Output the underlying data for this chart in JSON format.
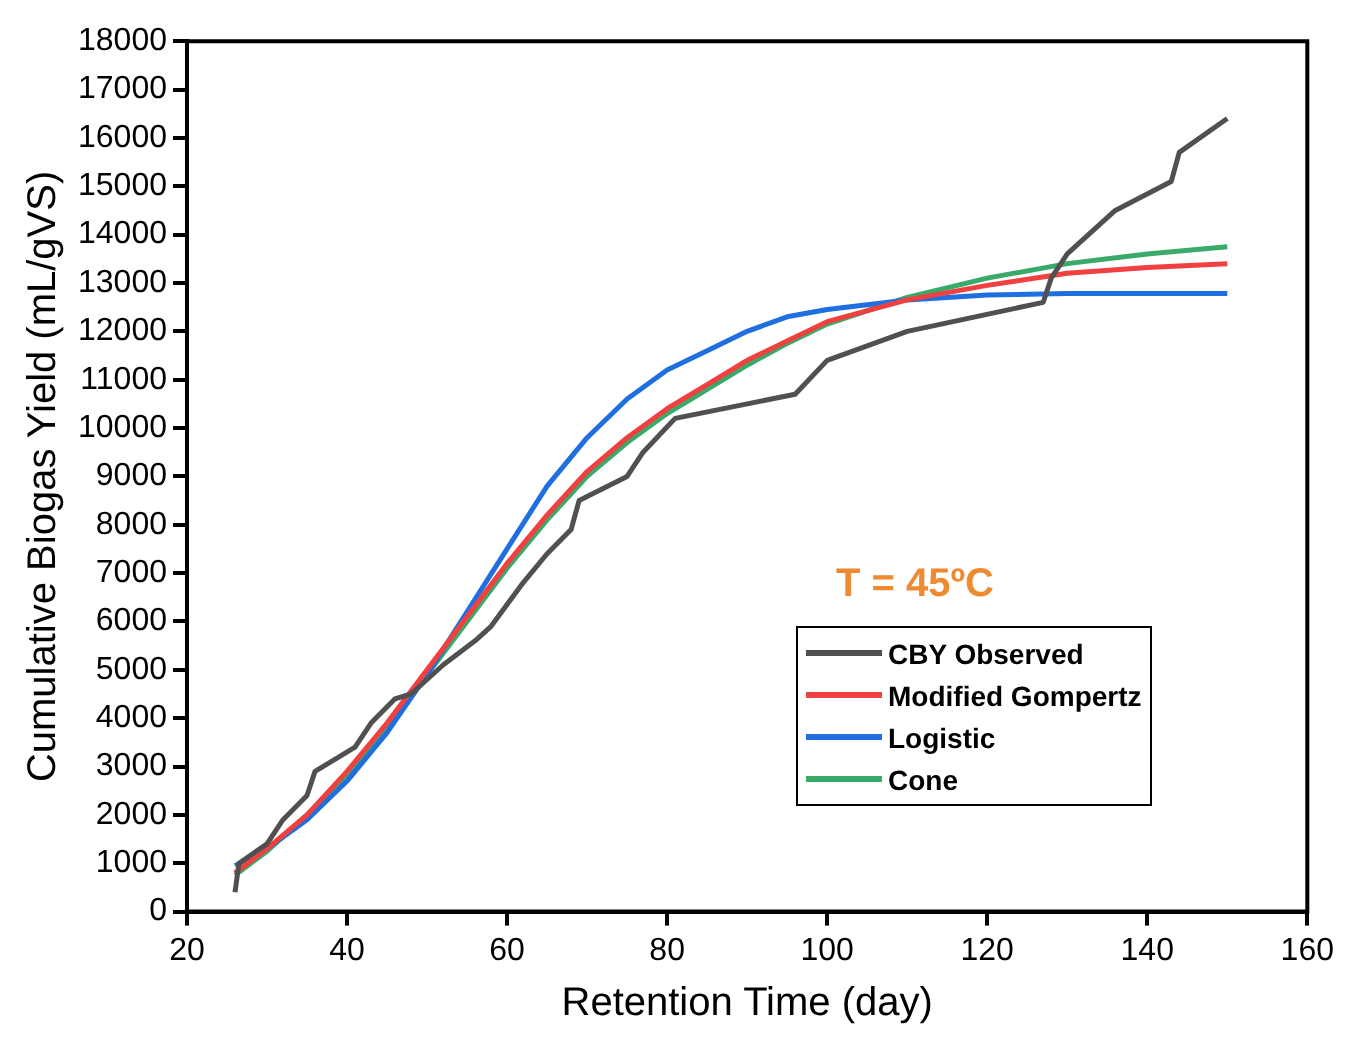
{
  "chart_data": {
    "type": "line",
    "xlabel": "Retention Time (day)",
    "ylabel": "Cumulative Biogas Yield (mL/gVS)",
    "annotations": [
      "T = 45ºC"
    ],
    "xlim": [
      20,
      160
    ],
    "xticks": [
      20,
      40,
      60,
      80,
      100,
      120,
      140,
      160
    ],
    "ylim": [
      0,
      18000
    ],
    "yticks": [
      0,
      1000,
      2000,
      3000,
      4000,
      5000,
      6000,
      7000,
      8000,
      9000,
      10000,
      11000,
      12000,
      13000,
      14000,
      15000,
      16000,
      17000,
      18000
    ],
    "grid": false,
    "legend": "right",
    "marker": "none",
    "line_style": "solid",
    "series": [
      {
        "name": "CBY Observed",
        "color": "#505050",
        "x": [
          26,
          26.5,
          30,
          32,
          35,
          36,
          39,
          41,
          43,
          46,
          48,
          52,
          56,
          58,
          62,
          65,
          68,
          69,
          75,
          77,
          81,
          96,
          100,
          110,
          127,
          128,
          130,
          136,
          143,
          144,
          150
        ],
        "values": [
          400,
          1000,
          1400,
          1900,
          2400,
          2900,
          3200,
          3400,
          3900,
          4400,
          4500,
          5100,
          5600,
          5900,
          6800,
          7400,
          7900,
          8500,
          9000,
          9500,
          10200,
          10700,
          11400,
          12000,
          12600,
          13100,
          13600,
          14500,
          15100,
          15700,
          16400
        ]
      },
      {
        "name": "Modified Gompertz",
        "color": "#f04040",
        "x": [
          26,
          30,
          35,
          40,
          45,
          50,
          55,
          60,
          65,
          70,
          75,
          80,
          85,
          90,
          95,
          100,
          110,
          120,
          130,
          140,
          150
        ],
        "values": [
          800,
          1300,
          2000,
          2900,
          3900,
          5000,
          6100,
          7200,
          8200,
          9100,
          9800,
          10400,
          10900,
          11400,
          11800,
          12200,
          12650,
          12950,
          13200,
          13320,
          13400
        ]
      },
      {
        "name": "Logistic",
        "color": "#1f6fe0",
        "x": [
          26,
          30,
          35,
          40,
          45,
          50,
          55,
          60,
          65,
          70,
          75,
          80,
          85,
          90,
          95,
          100,
          110,
          120,
          130,
          150
        ],
        "values": [
          950,
          1300,
          1900,
          2700,
          3700,
          4900,
          6200,
          7500,
          8800,
          9800,
          10600,
          11200,
          11600,
          12000,
          12300,
          12450,
          12650,
          12750,
          12780,
          12780
        ]
      },
      {
        "name": "Cone",
        "color": "#3aaa6a",
        "x": [
          26,
          30,
          35,
          40,
          45,
          50,
          55,
          60,
          65,
          70,
          75,
          80,
          85,
          90,
          95,
          100,
          110,
          120,
          130,
          140,
          150
        ],
        "values": [
          750,
          1250,
          2000,
          2800,
          3800,
          4900,
          6000,
          7100,
          8100,
          9000,
          9700,
          10300,
          10800,
          11300,
          11750,
          12150,
          12700,
          13100,
          13400,
          13600,
          13750
        ]
      }
    ]
  }
}
